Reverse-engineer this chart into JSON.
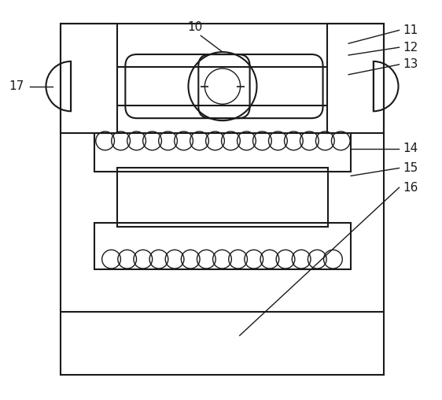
{
  "bg_color": "#ffffff",
  "line_color": "#1a1a1a",
  "lw_main": 1.5,
  "lw_thin": 1.0,
  "fig_width": 5.62,
  "fig_height": 5.08,
  "dpi": 100
}
